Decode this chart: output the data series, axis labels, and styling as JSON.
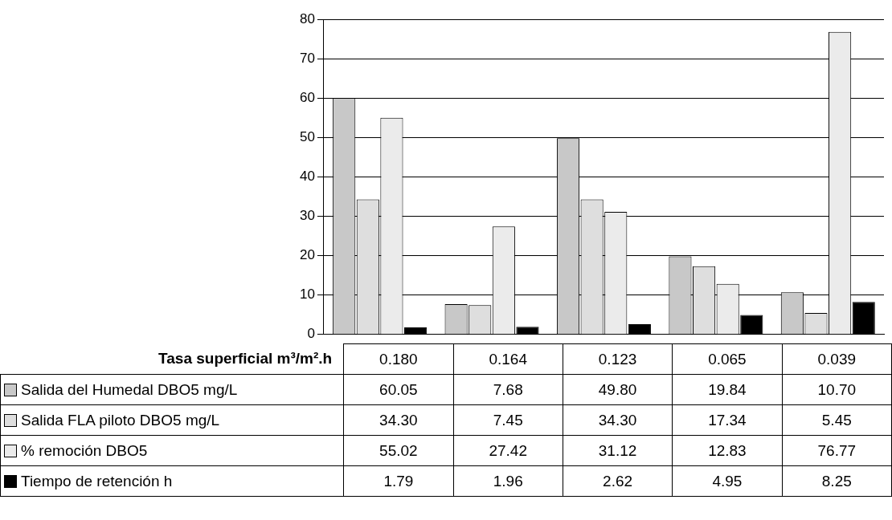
{
  "chart_data": {
    "type": "bar",
    "xlabel": "Tasa superficial m³/m².h",
    "categories": [
      "0.180",
      "0.164",
      "0.123",
      "0.065",
      "0.039"
    ],
    "series": [
      {
        "name": "Salida del Humedal DBO5 mg/L",
        "color": "#c8c8c8",
        "values": [
          60.05,
          7.68,
          49.8,
          19.84,
          10.7
        ],
        "value_labels": [
          "60.05",
          "7.68",
          "49.80",
          "19.84",
          "10.70"
        ]
      },
      {
        "name": "Salida FLA piloto DBO5 mg/L",
        "color": "#dedede",
        "values": [
          34.3,
          7.45,
          34.3,
          17.34,
          5.45
        ],
        "value_labels": [
          "34.30",
          "7.45",
          "34.30",
          "17.34",
          "5.45"
        ]
      },
      {
        "name": "% remoción DBO5",
        "color": "#ebebeb",
        "values": [
          55.02,
          27.42,
          31.12,
          12.83,
          76.77
        ],
        "value_labels": [
          "55.02",
          "27.42",
          "31.12",
          "12.83",
          "76.77"
        ]
      },
      {
        "name": "Tiempo de retención h",
        "color": "#000000",
        "values": [
          1.79,
          1.96,
          2.62,
          4.95,
          8.25
        ],
        "value_labels": [
          "1.79",
          "1.96",
          "2.62",
          "4.95",
          "8.25"
        ]
      }
    ],
    "ylim": [
      0,
      80
    ],
    "yticks": [
      0,
      10,
      20,
      30,
      40,
      50,
      60,
      70,
      80
    ],
    "grid": "y",
    "legend": "bottom"
  }
}
